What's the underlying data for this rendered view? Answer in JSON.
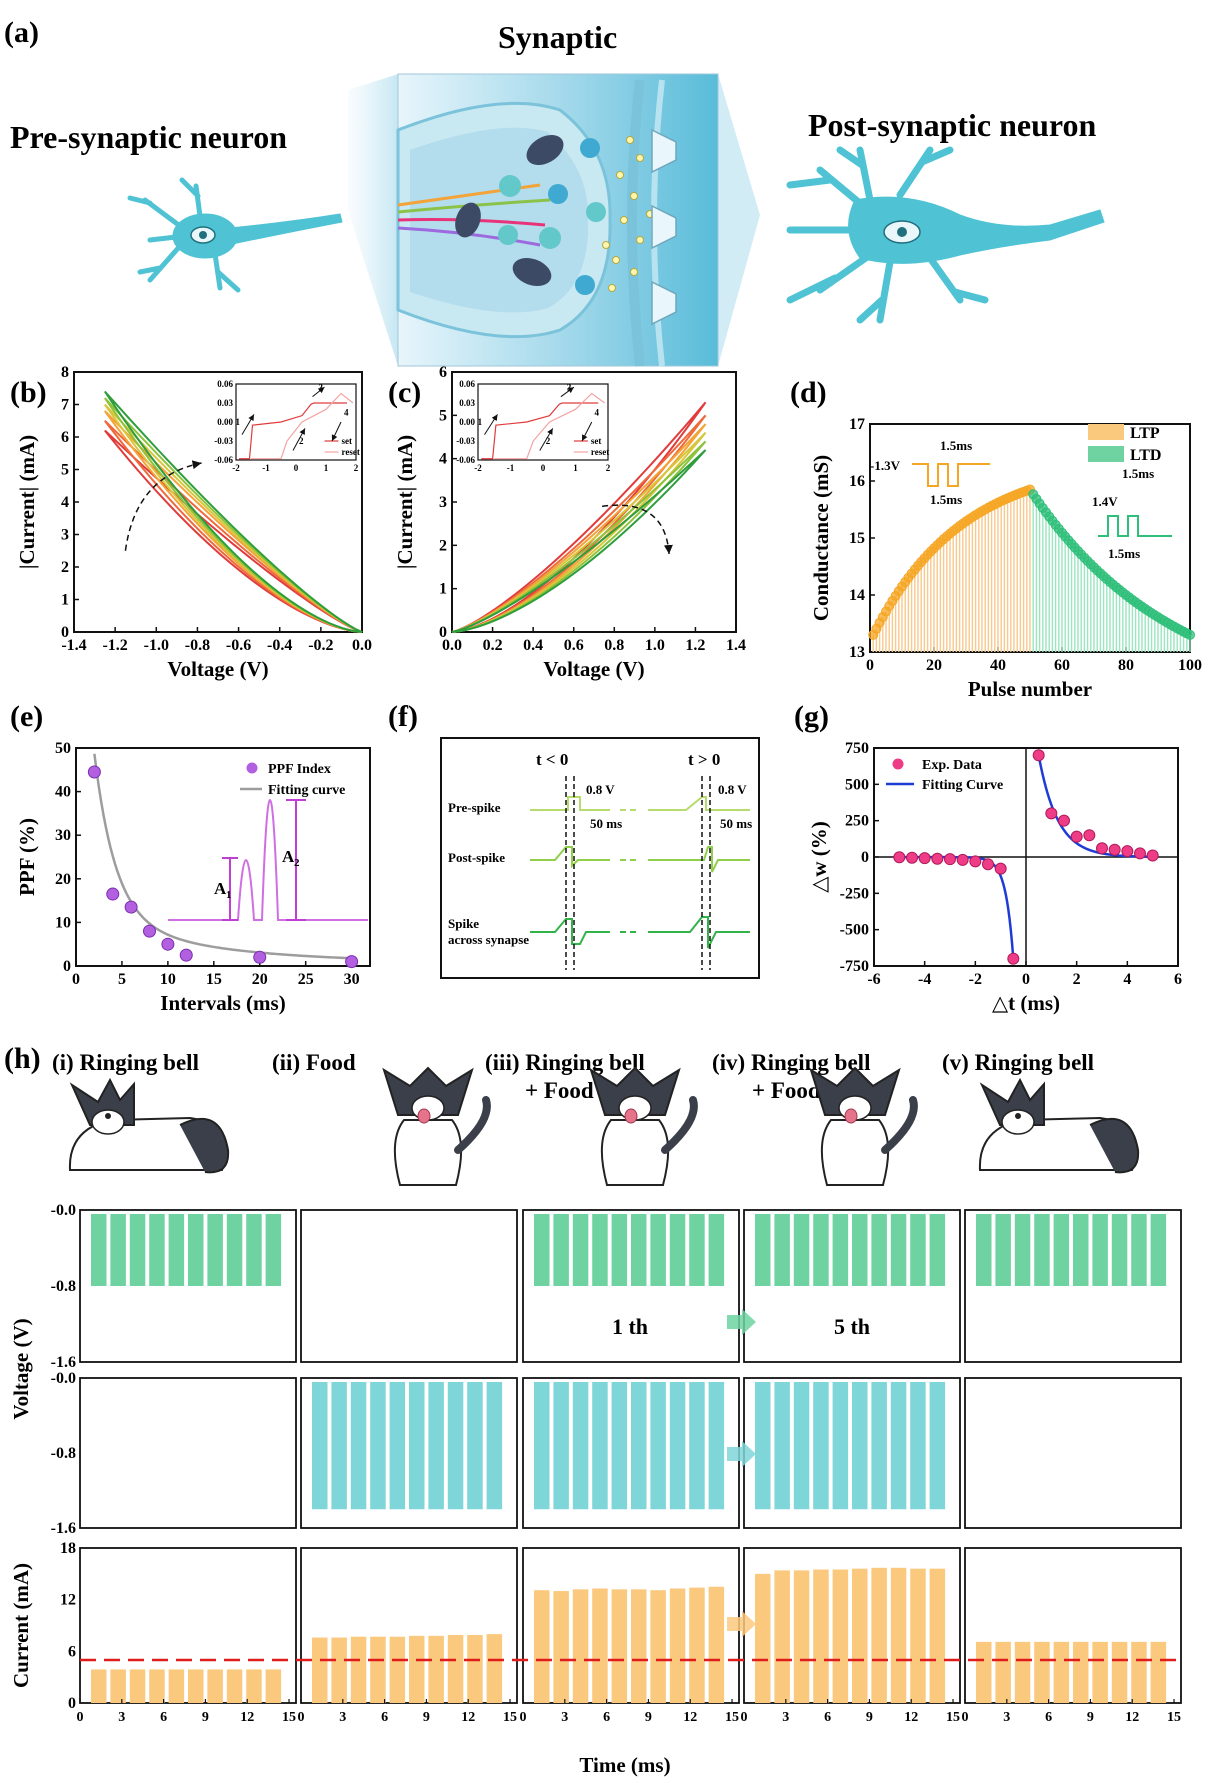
{
  "panel_letters": {
    "a": "(a)",
    "b": "(b)",
    "c": "(c)",
    "d": "(d)",
    "e": "(e)",
    "f": "(f)",
    "g": "(g)",
    "h": "(h)"
  },
  "panel_a": {
    "title": "Synaptic",
    "pre": "Pre-synaptic neuron",
    "post": "Post-synaptic neuron"
  },
  "panel_f": {
    "t_neg": "t < 0",
    "t_pos": "t > 0",
    "v1": "0.8 V",
    "v2": "0.8 V",
    "w1": "50 ms",
    "w2": "50 ms",
    "pre": "Pre-spike",
    "post": "Post-spike",
    "across1": "Spike",
    "across2": "across synapse"
  },
  "panel_h": {
    "stages": [
      {
        "label": "(i) Ringing bell",
        "label2": ""
      },
      {
        "label": "(ii) Food",
        "label2": ""
      },
      {
        "label": "(iii) Ringing bell",
        "label2": "+ Food"
      },
      {
        "label": "(iv) Ringing bell",
        "label2": "+ Food"
      },
      {
        "label": "(v) Ringing bell",
        "label2": ""
      }
    ],
    "epoch_iii": "1 th",
    "epoch_iv": "5 th"
  },
  "colors": {
    "neuron": "#4fc3d4",
    "red": "#e03c3c",
    "orange": "#f5a623",
    "green": "#2fbf7a",
    "purple": "#c24dd6",
    "magenta": "#e8337a",
    "blue": "#1f3bd6",
    "bar_green": "#6fd3a1",
    "bar_cyan": "#7fd6d9",
    "bar_orange": "#fbc97e",
    "dash_red": "#e01b1b"
  },
  "chart_data": [
    {
      "id": "b",
      "type": "line",
      "xlabel": "Voltage (V)",
      "ylabel": "|Current| (mA)",
      "xlim": [
        -1.4,
        0.0
      ],
      "ylim": [
        0,
        8
      ],
      "xticks": [
        "-1.4",
        "-1.2",
        "-1.0",
        "-0.8",
        "-0.6",
        "-0.4",
        "-0.2",
        "0.0"
      ],
      "yticks": [
        "0",
        "1",
        "2",
        "3",
        "4",
        "5",
        "6",
        "7",
        "8"
      ],
      "sweep_end": -1.25,
      "curves": [
        {
          "color": "#e03c3c",
          "end_current": 6.2
        },
        {
          "color": "#ee6a3b",
          "end_current": 6.5
        },
        {
          "color": "#f3a337",
          "end_current": 6.8
        },
        {
          "color": "#d8c63a",
          "end_current": 7.0
        },
        {
          "color": "#8fc23b",
          "end_current": 7.2
        },
        {
          "color": "#2e9e3d",
          "end_current": 7.4
        }
      ],
      "inset": {
        "xlim": [
          -2,
          2
        ],
        "ylim": [
          -0.06,
          0.06
        ],
        "xticks": [
          "-2",
          "-1",
          "0",
          "1",
          "2"
        ],
        "yticks": [
          "0.06",
          "0.03",
          "0.00",
          "-0.03",
          "-0.06"
        ],
        "legend": [
          "set",
          "reset"
        ],
        "arrows": [
          "1",
          "2",
          "3",
          "4"
        ]
      }
    },
    {
      "id": "c",
      "type": "line",
      "xlabel": "Voltage (V)",
      "ylabel": "|Current| (mA)",
      "xlim": [
        0.0,
        1.4
      ],
      "ylim": [
        0,
        6
      ],
      "xticks": [
        "0.0",
        "0.2",
        "0.4",
        "0.6",
        "0.8",
        "1.0",
        "1.2",
        "1.4"
      ],
      "yticks": [
        "0",
        "1",
        "2",
        "3",
        "4",
        "5",
        "6"
      ],
      "sweep_end": 1.25,
      "curves": [
        {
          "color": "#e03c3c",
          "end_current": 5.3
        },
        {
          "color": "#ee6a3b",
          "end_current": 5.0
        },
        {
          "color": "#f3a337",
          "end_current": 4.8
        },
        {
          "color": "#d8c63a",
          "end_current": 4.6
        },
        {
          "color": "#8fc23b",
          "end_current": 4.4
        },
        {
          "color": "#2e9e3d",
          "end_current": 4.2
        }
      ],
      "inset": {
        "xlim": [
          -2,
          2
        ],
        "ylim": [
          -0.06,
          0.06
        ],
        "xticks": [
          "-2",
          "-1",
          "0",
          "1",
          "2"
        ],
        "yticks": [
          "0.06",
          "0.03",
          "0.00",
          "-0.03",
          "-0.06"
        ],
        "legend": [
          "set",
          "reset"
        ],
        "arrows": [
          "1",
          "2",
          "3",
          "4"
        ]
      }
    },
    {
      "id": "d",
      "type": "scatter",
      "xlabel": "Pulse number",
      "ylabel": "Conductance (mS)",
      "xlim": [
        0,
        100
      ],
      "ylim": [
        13,
        17
      ],
      "xticks": [
        "0",
        "20",
        "40",
        "60",
        "80",
        "100"
      ],
      "yticks": [
        "13",
        "14",
        "15",
        "16",
        "17"
      ],
      "legend": [
        "LTP",
        "LTD"
      ],
      "annotations": [
        "1.5ms",
        "-1.3V",
        "1.5ms",
        "1.5ms",
        "1.4V",
        "1.5ms"
      ],
      "ltp_start": 13.3,
      "ltp_end": 15.85,
      "ltd_end": 13.3
    },
    {
      "id": "e",
      "type": "scatter",
      "xlabel": "Intervals (ms)",
      "ylabel": "PPF (%)",
      "xlim": [
        0,
        32
      ],
      "ylim": [
        0,
        50
      ],
      "xticks": [
        "0",
        "5",
        "10",
        "15",
        "20",
        "25",
        "30"
      ],
      "yticks": [
        "0",
        "10",
        "20",
        "30",
        "40",
        "50"
      ],
      "legend": [
        "PPF Index",
        "Fitting curve"
      ],
      "x": [
        2,
        4,
        6,
        8,
        10,
        12,
        20,
        30
      ],
      "y": [
        44.5,
        16.5,
        13.5,
        8,
        5,
        2.5,
        2,
        1
      ],
      "inset_labels": [
        "A",
        "1",
        "A",
        "2"
      ]
    },
    {
      "id": "g",
      "type": "scatter",
      "xlabel": "△t (ms)",
      "ylabel": "△w (%)",
      "xlim": [
        -6,
        6
      ],
      "ylim": [
        -750,
        750
      ],
      "xticks": [
        "-6",
        "-4",
        "-2",
        "0",
        "2",
        "4",
        "6"
      ],
      "yticks": [
        "750",
        "500",
        "250",
        "0",
        "-250",
        "-500",
        "-750"
      ],
      "legend": [
        "Exp. Data",
        "Fitting Curve"
      ],
      "x": [
        -5,
        -4.5,
        -4,
        -3.5,
        -3,
        -2.5,
        -2,
        -1.5,
        -1,
        -0.5,
        0.5,
        1,
        1.5,
        2,
        2.5,
        3,
        3.5,
        4,
        4.5,
        5
      ],
      "y": [
        -2,
        -5,
        -8,
        -12,
        -15,
        -20,
        -30,
        -50,
        -80,
        -700,
        700,
        300,
        250,
        140,
        150,
        60,
        50,
        40,
        25,
        10
      ]
    },
    {
      "id": "h",
      "type": "bar",
      "xlabel": "Time (ms)",
      "ylabel_voltage": "Voltage (V)",
      "ylabel_current": "Current (mA)",
      "voltage_ticks": [
        "-0.0",
        "-0.8",
        "-1.6"
      ],
      "current_ticks": [
        "0",
        "6",
        "12",
        "18"
      ],
      "x_ticks": [
        "0",
        "3",
        "6",
        "9",
        "12",
        "15"
      ],
      "threshold_mA": 5,
      "bell_level_V": -0.8,
      "food_level_V": -1.4,
      "bell_on": [
        true,
        false,
        true,
        true,
        true
      ],
      "food_on": [
        false,
        true,
        true,
        true,
        false
      ],
      "current_mA": [
        [
          3.9,
          3.9,
          3.9,
          3.9,
          3.9,
          3.9,
          3.9,
          3.9,
          3.9,
          3.9
        ],
        [
          7.6,
          7.6,
          7.7,
          7.7,
          7.7,
          7.8,
          7.8,
          7.9,
          7.9,
          8.0
        ],
        [
          13.1,
          13.0,
          13.2,
          13.3,
          13.2,
          13.2,
          13.1,
          13.3,
          13.4,
          13.5
        ],
        [
          15.0,
          15.4,
          15.4,
          15.5,
          15.5,
          15.6,
          15.7,
          15.7,
          15.6,
          15.6
        ],
        [
          7.1,
          7.1,
          7.1,
          7.1,
          7.1,
          7.1,
          7.1,
          7.1,
          7.1,
          7.1
        ]
      ]
    }
  ]
}
